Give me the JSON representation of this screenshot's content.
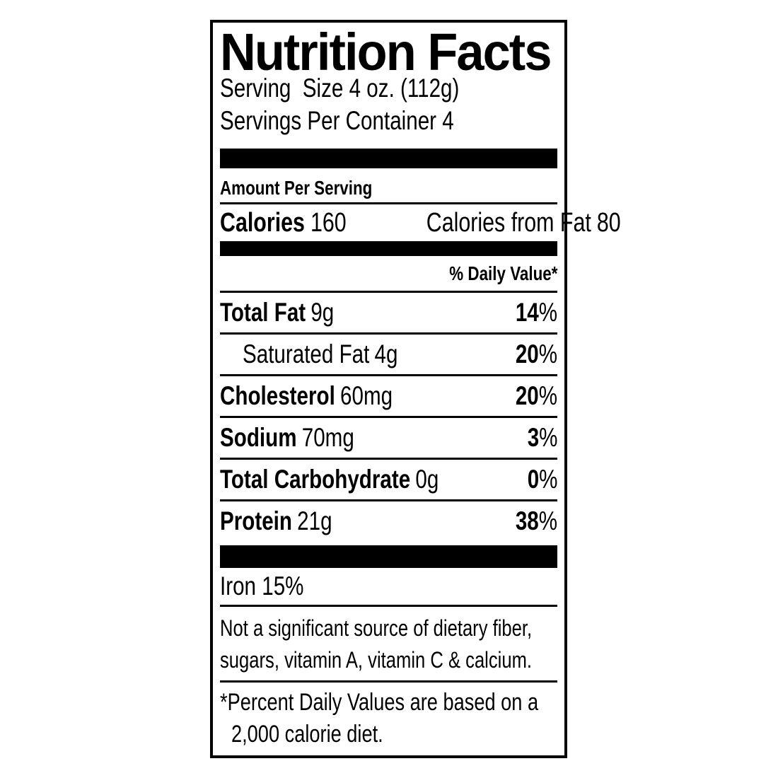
{
  "label": {
    "title": "Nutrition Facts",
    "serving_size": "Serving  Size 4 oz. (112g)",
    "servings_per_container": "Servings Per Container 4",
    "amount_per_serving": "Amount Per Serving",
    "calories": {
      "label": "Calories",
      "value": "160",
      "from_fat_label": "Calories from Fat",
      "from_fat_value": "80"
    },
    "daily_value_header": "% Daily Value*",
    "percent_sign": "%",
    "nutrients": [
      {
        "name": "Total Fat",
        "amount": "9g",
        "daily_value": "14"
      },
      {
        "name": "Saturated Fat",
        "amount": "4g",
        "daily_value": "20"
      },
      {
        "name": "Cholesterol",
        "amount": "60mg",
        "daily_value": "20"
      },
      {
        "name": "Sodium",
        "amount": "70mg",
        "daily_value": "3"
      },
      {
        "name": "Total Carbohydrate",
        "amount": "0g",
        "daily_value": "0"
      },
      {
        "name": "Protein",
        "amount": "21g",
        "daily_value": "38"
      }
    ],
    "iron": "Iron 15%",
    "not_significant_line1": "Not a significant source of dietary fiber,",
    "not_significant_line2": "sugars, vitamin A, vitamin C & calcium.",
    "footnote_line1": "*Percent Daily Values are based on a",
    "footnote_line2": "2,000 calorie diet.",
    "colors": {
      "ink": "#000000",
      "background": "#ffffff"
    }
  }
}
